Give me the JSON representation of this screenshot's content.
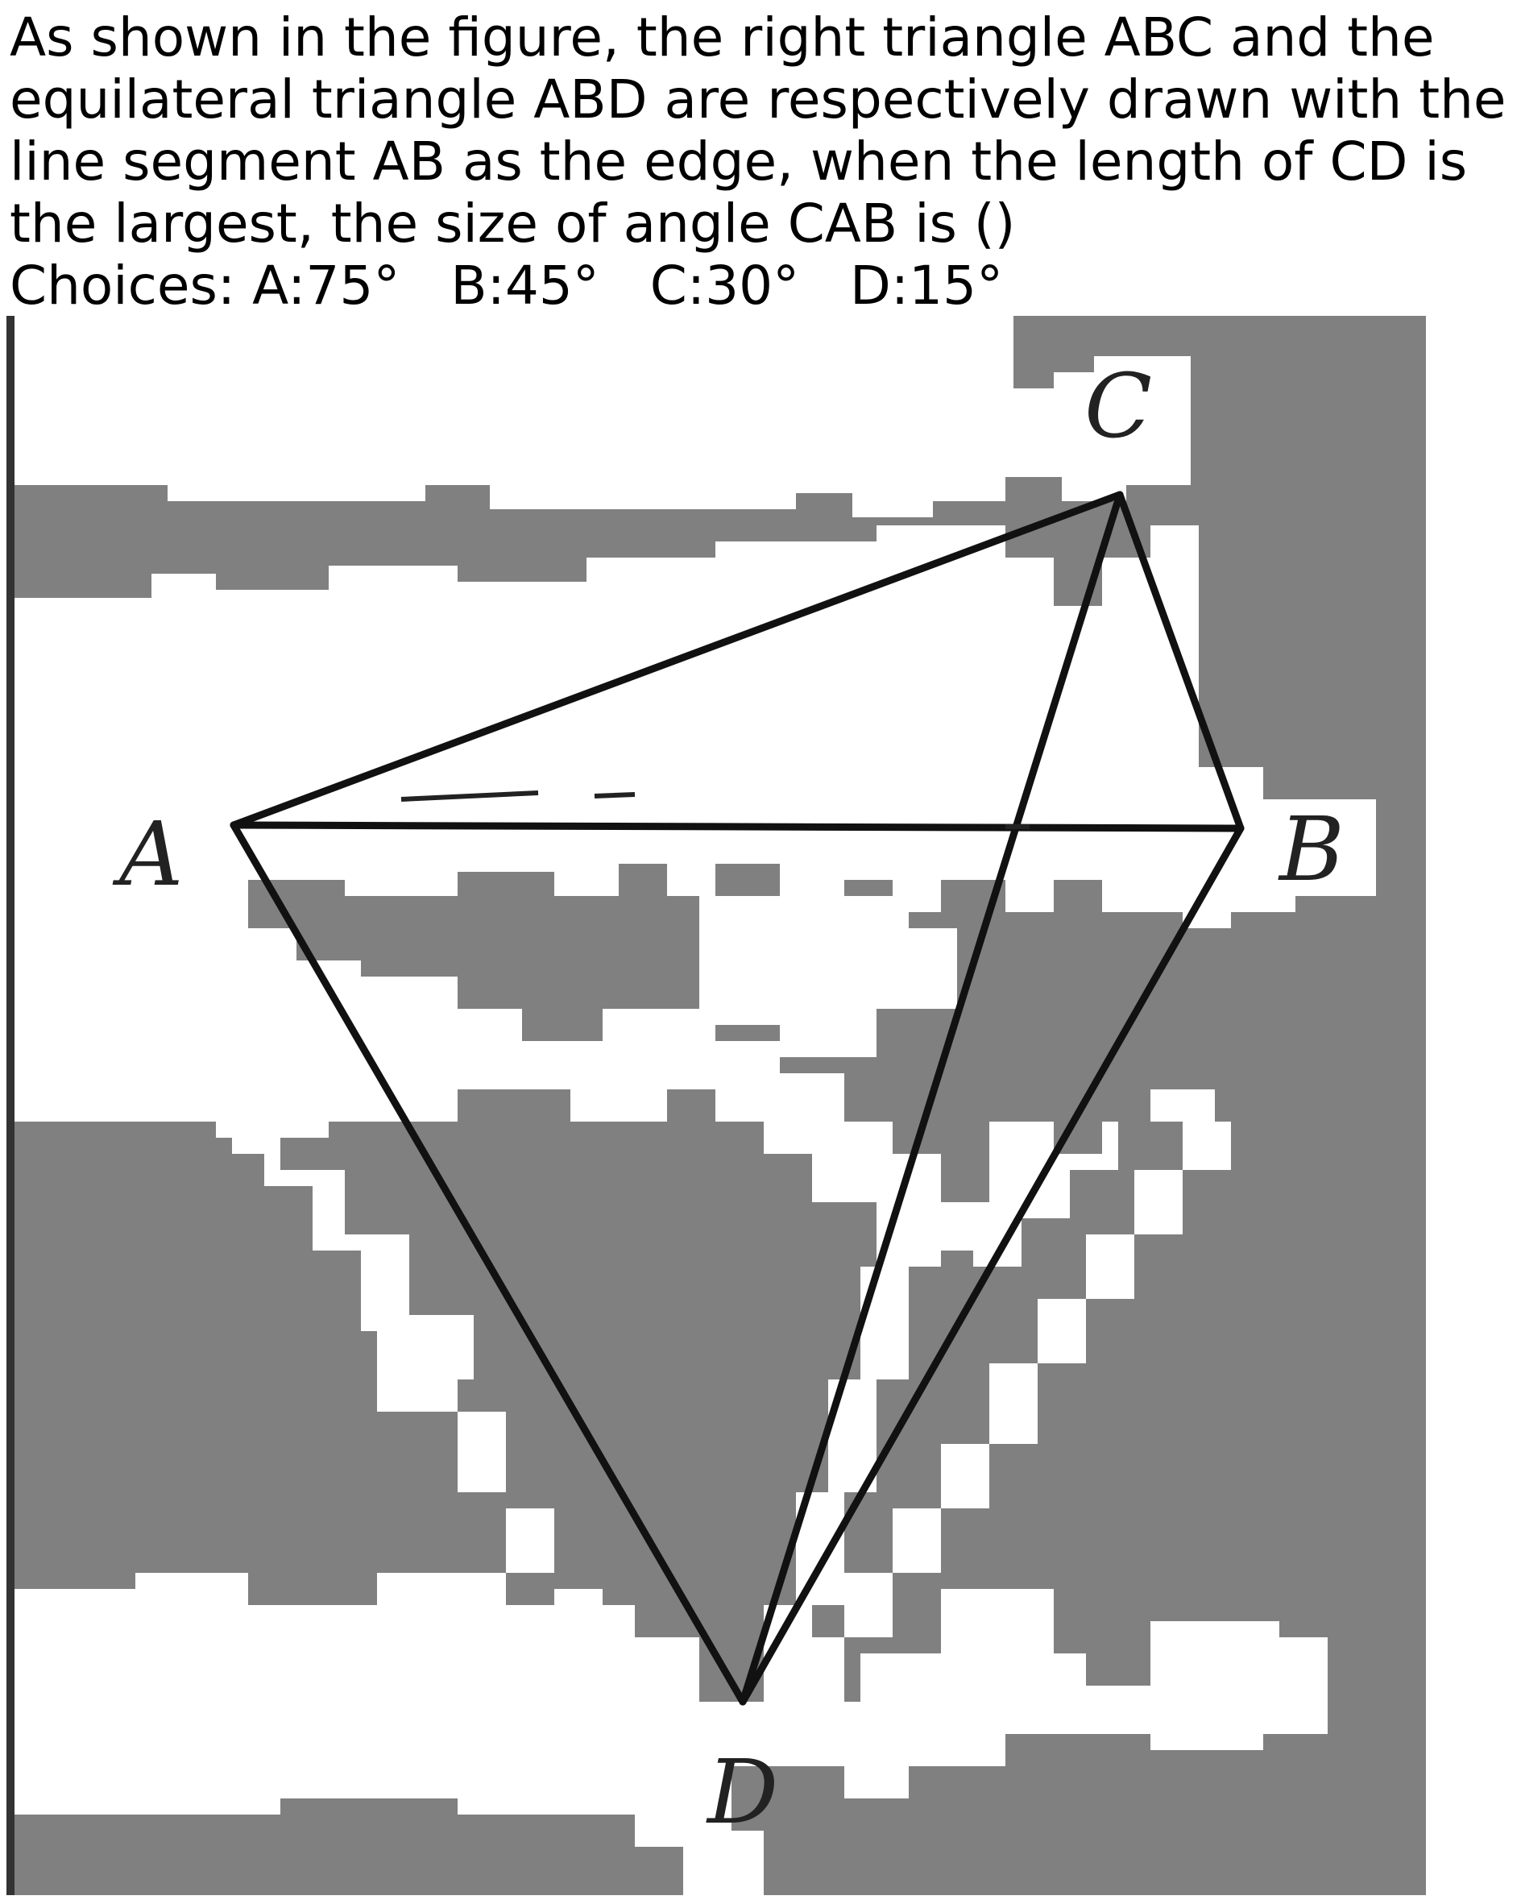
{
  "question": {
    "lines": [
      "As shown in the figure, the right triangle ABC and the",
      "equilateral triangle ABD are respectively drawn with the",
      "line segment AB as the edge, when the length of CD is",
      "the largest, the size of angle CAB is ()"
    ],
    "choices_label": "Choices:",
    "choices": [
      {
        "letter": "A:",
        "value": "75°"
      },
      {
        "letter": "B:",
        "value": "45°"
      },
      {
        "letter": "C:",
        "value": "30°"
      },
      {
        "letter": "D:",
        "value": "15°"
      }
    ]
  },
  "figure": {
    "vertices": {
      "A": "A",
      "B": "B",
      "C": "C",
      "D": "D"
    },
    "colors": {
      "background": "#808080",
      "patches": "#ffffff",
      "lines": "#111111"
    }
  }
}
